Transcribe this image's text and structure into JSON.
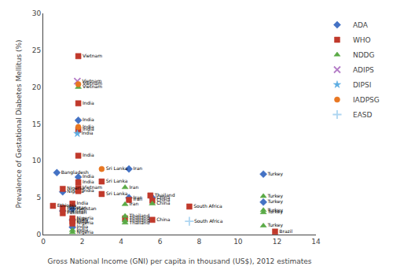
{
  "chart_data": {
    "type": "scatter",
    "xlabel": "Gross National Income (GNI) per capita in thousand (US$), 2012 estimates",
    "ylabel": "Prevalence of Gestational Diabetes Mellitus (%)",
    "xlim": [
      0,
      14
    ],
    "ylim": [
      0,
      30
    ],
    "xticks": [
      0,
      2,
      4,
      6,
      8,
      10,
      12,
      14
    ],
    "yticks": [
      0,
      5,
      10,
      15,
      20,
      25,
      30
    ],
    "grid": false,
    "legend": "upper right",
    "series": [
      {
        "name": "ADA",
        "color": "#4472C4",
        "marker": "diamond",
        "x": [
          1.8,
          0.7,
          1.8,
          1.0,
          4.4,
          4.4,
          5.6,
          11.3,
          11.3,
          1.0,
          1.5,
          1.5,
          1.5
        ],
        "values": [
          15.5,
          8.4,
          7.8,
          5.8,
          8.9,
          5.0,
          5.0,
          8.2,
          4.4,
          3.2,
          3.5,
          2.0,
          1.0
        ],
        "labels": [
          "India",
          "Bangladesh",
          "India",
          "Nigeria",
          "Iran",
          "Iran",
          "China",
          "Turkey",
          "Turkey",
          "Pakistan",
          "Pakistan",
          "India",
          "India"
        ]
      },
      {
        "name": "WHO",
        "color": "#C0392B",
        "marker": "square",
        "x": [
          1.8,
          1.8,
          1.8,
          1.8,
          1.8,
          1.8,
          1.8,
          1.0,
          3.0,
          3.0,
          4.4,
          4.2,
          5.5,
          5.6,
          5.6,
          7.5,
          11.9,
          0.5,
          1.0,
          1.0,
          1.5,
          1.5,
          1.5,
          1.5
        ],
        "values": [
          24.2,
          17.8,
          14.2,
          10.7,
          7.1,
          6.3,
          5.9,
          6.2,
          7.2,
          5.5,
          4.7,
          2.2,
          5.3,
          4.6,
          2.0,
          3.8,
          0.4,
          3.9,
          3.6,
          2.9,
          4.2,
          2.2,
          1.8,
          1.5
        ],
        "labels": [
          "Vietnam",
          "India",
          "India",
          "India",
          "India",
          "Vietnam",
          "India",
          "Nigeria",
          "Sri Lanka",
          "Sri Lanka",
          "Iran",
          "Thailand",
          "Thailand",
          "China",
          "China",
          "South Africa",
          "Brazil",
          "Ethiopia",
          "Pakistan",
          "Pakistan",
          "India",
          "Nigeria",
          "India",
          "Nigeria"
        ]
      },
      {
        "name": "NDDG",
        "color": "#5AAA46",
        "marker": "triangle",
        "x": [
          1.8,
          4.2,
          4.2,
          4.2,
          4.2,
          4.2,
          5.6,
          11.3,
          11.3,
          11.3,
          11.3,
          1.5,
          1.5
        ],
        "values": [
          20.0,
          6.4,
          4.1,
          2.5,
          1.9,
          1.6,
          4.2,
          5.2,
          3.3,
          3.0,
          1.2,
          0.6,
          0.3
        ],
        "labels": [
          "Vietnam",
          "Iran",
          "Iran",
          "Thailand",
          "Thailand",
          "Thailand",
          "China",
          "Turkey",
          "Turkey",
          "Turkey",
          "Turkey",
          "India",
          "Nigeria"
        ]
      },
      {
        "name": "ADIPS",
        "color": "#B47CC7",
        "marker": "x",
        "x": [
          1.75
        ],
        "values": [
          20.8
        ],
        "labels": [
          "Vietnam"
        ]
      },
      {
        "name": "DIPSI",
        "color": "#5DADE2",
        "marker": "star",
        "x": [
          1.75
        ],
        "values": [
          13.7
        ],
        "labels": [
          "India"
        ]
      },
      {
        "name": "IADPSG",
        "color": "#E87722",
        "marker": "circle",
        "x": [
          1.8,
          1.8,
          3.0
        ],
        "values": [
          20.4,
          14.6,
          8.9
        ],
        "labels": [
          "Vietnam",
          "India",
          "Sri Lanka"
        ]
      },
      {
        "name": "EASD",
        "color": "#AED6F1",
        "marker": "plus",
        "x": [
          7.5
        ],
        "values": [
          1.8
        ],
        "labels": [
          "South Africa"
        ]
      }
    ]
  }
}
